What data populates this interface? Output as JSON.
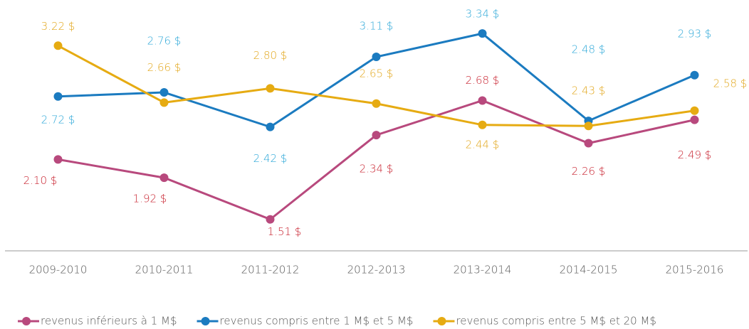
{
  "chart_data": {
    "type": "line",
    "categories": [
      "2009-2010",
      "2010-2011",
      "2011-2012",
      "2012-2013",
      "2013-2014",
      "2014-2015",
      "2015-2016"
    ],
    "ylim": [
      1.2,
      3.67
    ],
    "series": [
      {
        "name": "revenus inférieurs à 1 M$",
        "color": "#b8497d",
        "values": [
          2.1,
          1.92,
          1.51,
          2.34,
          2.68,
          2.26,
          2.49
        ],
        "value_labels": [
          "2.10 $",
          "1.92 $",
          "1.51 $",
          "2.34 $",
          "2.68 $",
          "2.26 $",
          "2.49 $"
        ]
      },
      {
        "name": "revenus compris entre 1 M$ et 5 M$",
        "color": "#1b7bc0",
        "values": [
          2.72,
          2.76,
          2.42,
          3.11,
          3.34,
          2.48,
          2.93
        ],
        "value_labels": [
          "2.72 $",
          "2.76 $",
          "2.42 $",
          "3.11 $",
          "3.34 $",
          "2.48 $",
          "2.93 $"
        ]
      },
      {
        "name": "revenus compris entre 5 M$ et 20 M$",
        "color": "#e6ab12",
        "values": [
          3.22,
          2.66,
          2.8,
          2.65,
          2.44,
          2.43,
          2.58
        ],
        "value_labels": [
          "3.22 $",
          "2.66 $",
          "2.80 $",
          "2.65 $",
          "2.44 $",
          "2.43 $",
          "2.58 $"
        ]
      }
    ]
  }
}
